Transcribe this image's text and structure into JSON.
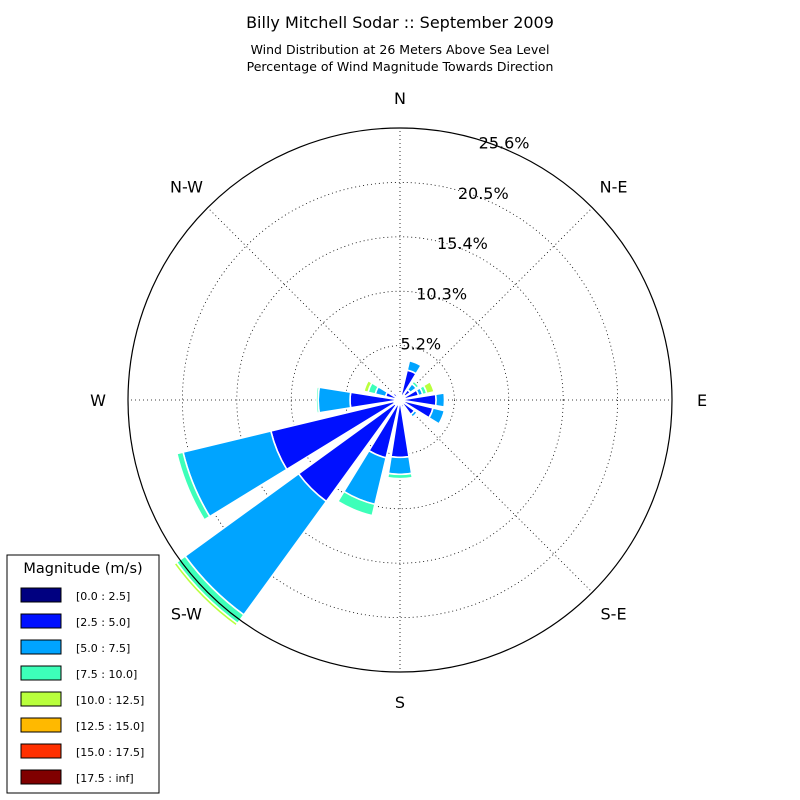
{
  "chart_data": {
    "type": "windrose",
    "title": "Billy Mitchell Sodar :: September 2009",
    "subtitle_lines": [
      "Wind Distribution at 26 Meters Above Sea Level",
      "Percentage of Wind Magnitude Towards Direction"
    ],
    "direction_labels": {
      "N": "N",
      "NE": "N-E",
      "E": "E",
      "SE": "S-E",
      "S": "S",
      "SW": "S-W",
      "W": "W",
      "NW": "N-W"
    },
    "radial_tick_labels": [
      "5.2%",
      "10.3%",
      "15.4%",
      "20.5%",
      "25.6%"
    ],
    "radial_ticks": [
      5.12,
      10.24,
      15.36,
      20.48,
      25.6
    ],
    "rmax": 25.6,
    "grid": true,
    "legend": {
      "title": "Magnitude (m/s)",
      "placement": "bottom-left",
      "entries": [
        {
          "label": "[0.0 : 2.5]",
          "color": "#000080"
        },
        {
          "label": "[2.5 : 5.0]",
          "color": "#0010ff"
        },
        {
          "label": "[5.0 : 7.5]",
          "color": "#00a4ff"
        },
        {
          "label": "[7.5 : 10.0]",
          "color": "#3dffb9"
        },
        {
          "label": "[10.0 : 12.5]",
          "color": "#b9ff3d"
        },
        {
          "label": "[12.5 : 15.0]",
          "color": "#ffb900"
        },
        {
          "label": "[15.0 : 17.5]",
          "color": "#ff3000"
        },
        {
          "label": "[17.5 : inf]",
          "color": "#800000"
        }
      ]
    },
    "bins": [
      "[0.0 : 2.5]",
      "[2.5 : 5.0]",
      "[5.0 : 7.5]",
      "[7.5 : 10.0]",
      "[10.0 : 12.5]",
      "[12.5 : 15.0]",
      "[15.0 : 17.5]",
      "[17.5 : inf]"
    ],
    "directions_deg": [
      0,
      22.5,
      45,
      67.5,
      90,
      112.5,
      135,
      157.5,
      180,
      202.5,
      225,
      247.5,
      270,
      292.5,
      315,
      337.5
    ],
    "sectors": [
      {
        "dir": 0,
        "cumulative": [
          0.3,
          0.4
        ]
      },
      {
        "dir": 22.5,
        "cumulative": [
          0.4,
          2.9,
          3.8
        ]
      },
      {
        "dir": 45,
        "cumulative": [
          0.6,
          1.2,
          1.9,
          2.2
        ]
      },
      {
        "dir": 67.5,
        "cumulative": [
          0.5,
          1.8,
          2.2,
          2.6,
          3.3
        ]
      },
      {
        "dir": 90,
        "cumulative": [
          0.4,
          3.4,
          4.2,
          4.3
        ]
      },
      {
        "dir": 112.5,
        "cumulative": [
          0.4,
          3.2,
          4.3
        ]
      },
      {
        "dir": 135,
        "cumulative": [
          0.4,
          1.7,
          2.0
        ]
      },
      {
        "dir": 157.5,
        "cumulative": [
          0.3,
          0.7
        ]
      },
      {
        "dir": 180,
        "cumulative": [
          0.4,
          5.4,
          7.0,
          7.4
        ]
      },
      {
        "dir": 202.5,
        "cumulative": [
          0.5,
          5.6,
          10.1,
          11.2
        ]
      },
      {
        "dir": 225,
        "cumulative": [
          0.6,
          11.8,
          25.0,
          26.0,
          26.3
        ]
      },
      {
        "dir": 247.5,
        "cumulative": [
          0.6,
          12.5,
          21.0,
          21.6
        ]
      },
      {
        "dir": 270,
        "cumulative": [
          0.5,
          4.7,
          7.7,
          7.9
        ]
      },
      {
        "dir": 292.5,
        "cumulative": [
          0.4,
          1.4,
          2.4,
          3.1,
          3.5
        ]
      },
      {
        "dir": 315,
        "cumulative": [
          0.3,
          0.8
        ]
      },
      {
        "dir": 337.5,
        "cumulative": [
          0.3,
          0.6
        ]
      }
    ]
  }
}
